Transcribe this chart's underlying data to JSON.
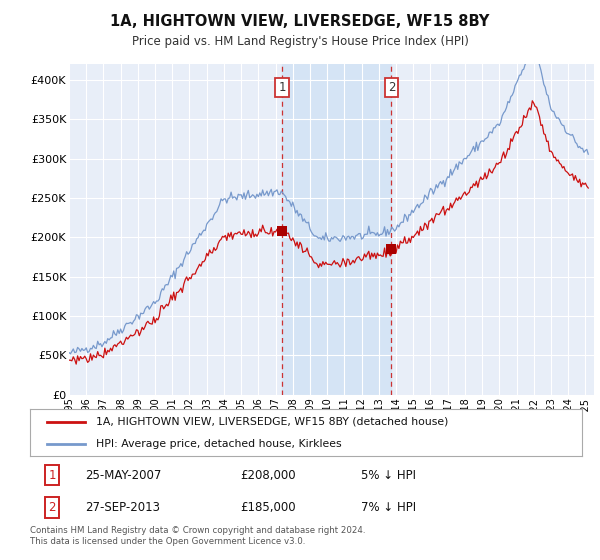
{
  "title": "1A, HIGHTOWN VIEW, LIVERSEDGE, WF15 8BY",
  "subtitle": "Price paid vs. HM Land Registry's House Price Index (HPI)",
  "background_color": "#ffffff",
  "plot_bg_color": "#e8eef8",
  "grid_color": "#ffffff",
  "hpi_color": "#7799cc",
  "price_color": "#cc1111",
  "marker_color": "#aa0000",
  "sale1_x": 2007.38,
  "sale1_price": 208000,
  "sale2_x": 2013.73,
  "sale2_price": 185000,
  "shade_color": "#d5e4f5",
  "dashed_color": "#cc3333",
  "legend_line1": "1A, HIGHTOWN VIEW, LIVERSEDGE, WF15 8BY (detached house)",
  "legend_line2": "HPI: Average price, detached house, Kirklees",
  "sale1_date": "25-MAY-2007",
  "sale1_note": "5% ↓ HPI",
  "sale2_date": "27-SEP-2013",
  "sale2_note": "7% ↓ HPI",
  "footnote": "Contains HM Land Registry data © Crown copyright and database right 2024.\nThis data is licensed under the Open Government Licence v3.0.",
  "ylim": [
    0,
    420000
  ],
  "yticks": [
    0,
    50000,
    100000,
    150000,
    200000,
    250000,
    300000,
    350000,
    400000
  ],
  "ytick_labels": [
    "£0",
    "£50K",
    "£100K",
    "£150K",
    "£200K",
    "£250K",
    "£300K",
    "£350K",
    "£400K"
  ],
  "xlim": [
    1995.0,
    2025.5
  ],
  "xtick_years": [
    1995,
    1996,
    1997,
    1998,
    1999,
    2000,
    2001,
    2002,
    2003,
    2004,
    2005,
    2006,
    2007,
    2008,
    2009,
    2010,
    2011,
    2012,
    2013,
    2014,
    2015,
    2016,
    2017,
    2018,
    2019,
    2020,
    2021,
    2022,
    2023,
    2024,
    2025
  ]
}
